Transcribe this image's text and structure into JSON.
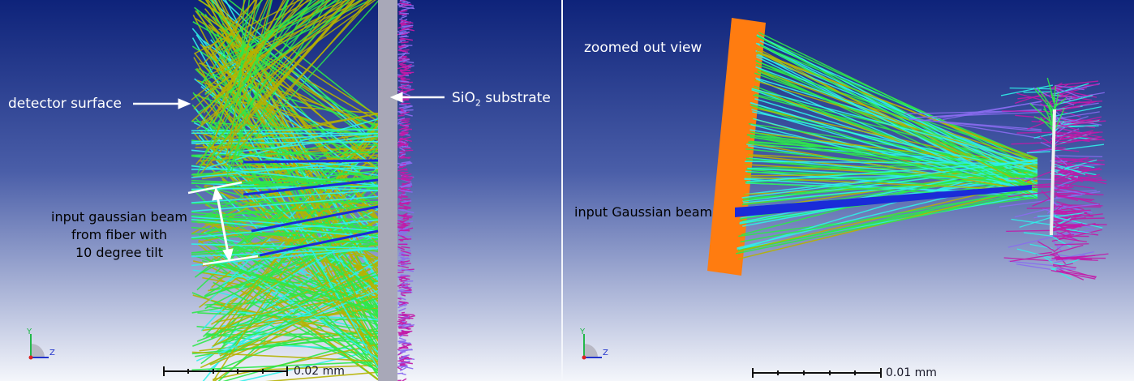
{
  "left_panel": {
    "detector_label": "detector surface",
    "substrate_prefix": "SiO",
    "substrate_sub": "2",
    "substrate_suffix": " substrate",
    "beam_caption": [
      "input gaussian beam",
      "from fiber with",
      "10 degree tilt"
    ],
    "scale_label": "0.02 mm",
    "axes": {
      "vertical": "Y",
      "horizontal": "Z"
    }
  },
  "right_panel": {
    "title": "zoomed out view",
    "beam_label": "input Gaussian beam",
    "scale_label": "0.01 mm",
    "axes": {
      "vertical": "Y",
      "horizontal": "Z"
    }
  },
  "colors": {
    "background_top": "#0e237a",
    "background_bottom": "#f4f6fb",
    "ray_yellow": "#b6b200",
    "ray_green": "#2ee84a",
    "ray_cyan": "#30f0e8",
    "ray_blue": "#1a2bd8",
    "substrate_gray": "#a8a8b8",
    "scatter_magenta": "#c21aa8",
    "scatter_violet": "#8a6cf0",
    "detector_orange": "#ff7c10"
  }
}
